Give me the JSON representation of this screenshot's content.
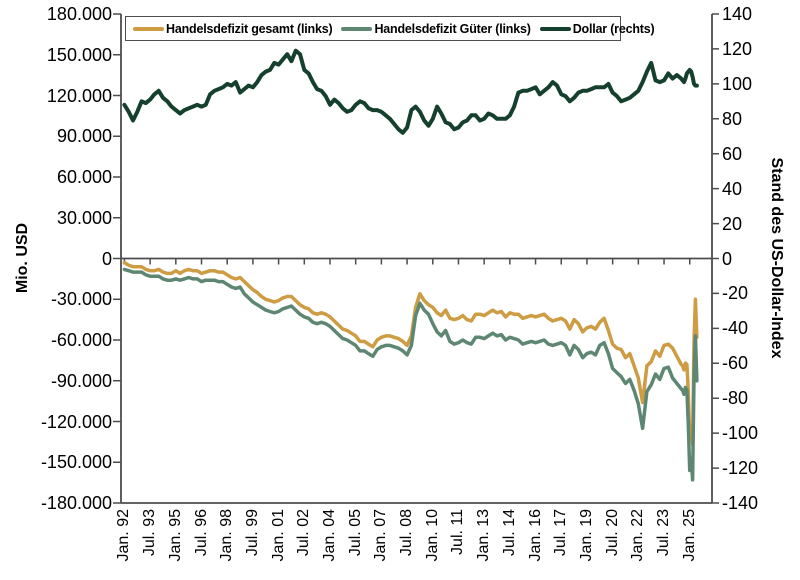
{
  "chart_data": {
    "type": "line",
    "background": "#ffffff",
    "axis_color": "#4d4d4d",
    "legend": {
      "position": "top-inside",
      "entries": [
        "Handelsdefizit gesamt (links)",
        "Handelsdefizit Güter (links)",
        "Dollar (rechts)"
      ]
    },
    "left_axis": {
      "label": "Mio. USD",
      "range": [
        -180000,
        180000
      ],
      "tick_values": [
        180000,
        150000,
        120000,
        90000,
        60000,
        30000,
        0,
        -30000,
        -60000,
        -90000,
        -120000,
        -150000,
        -180000
      ],
      "tick_labels": [
        "180.000",
        "150.000",
        "120.000",
        "90.000",
        "60.000",
        "30.000",
        "0",
        "-30.000",
        "-60.000",
        "-90.000",
        "-120.000",
        "-150.000",
        "-180.000"
      ]
    },
    "right_axis": {
      "label": "Stand des US-Dollar-Index",
      "range": [
        -140,
        140
      ],
      "tick_values": [
        140,
        120,
        100,
        80,
        60,
        40,
        20,
        0,
        -20,
        -40,
        -60,
        -80,
        -100,
        -120,
        -140
      ],
      "tick_labels": [
        "140",
        "120",
        "100",
        "80",
        "60",
        "40",
        "20",
        "0",
        "-20",
        "-40",
        "-60",
        "-80",
        "-100",
        "-120",
        "-140"
      ]
    },
    "x_axis": {
      "range": [
        1991.8,
        2026.3
      ],
      "tick_values": [
        1992,
        1993.5,
        1995,
        1996.5,
        1998,
        1999.5,
        2001,
        2002.5,
        2004,
        2005.5,
        2007,
        2008.5,
        2010,
        2011.5,
        2013,
        2014.5,
        2016,
        2017.5,
        2019,
        2020.5,
        2022,
        2023.5,
        2025
      ],
      "tick_labels": [
        "Jan. 92",
        "Jul. 93",
        "Jan. 95",
        "Jul. 96",
        "Jan. 98",
        "Jul. 99",
        "Jan. 01",
        "Jul. 02",
        "Jan. 04",
        "Jul. 05",
        "Jan. 07",
        "Jul. 08",
        "Jan. 10",
        "Jul. 11",
        "Jan. 13",
        "Jul. 14",
        "Jan. 16",
        "Jul. 17",
        "Jan. 19",
        "Jul. 20",
        "Jan. 22",
        "Jul. 23",
        "Jan. 25"
      ],
      "unit": "month (quarterly samples 1992-2024, monthly Aug 2024 - Jun 2025)"
    },
    "x": [
      1992,
      1992.25,
      1992.5,
      1992.75,
      1993,
      1993.25,
      1993.5,
      1993.75,
      1994,
      1994.25,
      1994.5,
      1994.75,
      1995,
      1995.25,
      1995.5,
      1995.75,
      1996,
      1996.25,
      1996.5,
      1996.75,
      1997,
      1997.25,
      1997.5,
      1997.75,
      1998,
      1998.25,
      1998.5,
      1998.75,
      1999,
      1999.25,
      1999.5,
      1999.75,
      2000,
      2000.25,
      2000.5,
      2000.75,
      2001,
      2001.25,
      2001.5,
      2001.75,
      2002,
      2002.25,
      2002.5,
      2002.75,
      2003,
      2003.25,
      2003.5,
      2003.75,
      2004,
      2004.25,
      2004.5,
      2004.75,
      2005,
      2005.25,
      2005.5,
      2005.75,
      2006,
      2006.25,
      2006.5,
      2006.75,
      2007,
      2007.25,
      2007.5,
      2007.75,
      2008,
      2008.25,
      2008.5,
      2008.75,
      2009,
      2009.25,
      2009.5,
      2009.75,
      2010,
      2010.25,
      2010.5,
      2010.75,
      2011,
      2011.25,
      2011.5,
      2011.75,
      2012,
      2012.25,
      2012.5,
      2012.75,
      2013,
      2013.25,
      2013.5,
      2013.75,
      2014,
      2014.25,
      2014.5,
      2014.75,
      2015,
      2015.25,
      2015.5,
      2015.75,
      2016,
      2016.25,
      2016.5,
      2016.75,
      2017,
      2017.25,
      2017.5,
      2017.75,
      2018,
      2018.25,
      2018.5,
      2018.75,
      2019,
      2019.25,
      2019.5,
      2019.75,
      2020,
      2020.25,
      2020.5,
      2020.75,
      2021,
      2021.25,
      2021.5,
      2021.75,
      2022,
      2022.25,
      2022.5,
      2022.75,
      2023,
      2023.25,
      2023.5,
      2023.75,
      2024,
      2024.25,
      2024.5,
      2024.583,
      2024.667,
      2024.75,
      2024.833,
      2024.917,
      2025,
      2025.083,
      2025.167,
      2025.25,
      2025.333,
      2025.417
    ],
    "series": [
      {
        "name": "Handelsdefizit gesamt (links)",
        "axis": "left",
        "color": "#CD9C43",
        "values": [
          -3000,
          -5000,
          -6000,
          -6000,
          -6000,
          -8000,
          -9000,
          -9000,
          -8000,
          -10000,
          -11000,
          -11000,
          -9000,
          -11000,
          -9000,
          -8000,
          -9000,
          -9000,
          -11000,
          -10000,
          -9000,
          -9000,
          -10000,
          -10000,
          -12000,
          -14000,
          -15000,
          -14000,
          -17000,
          -20000,
          -23000,
          -25000,
          -28000,
          -30000,
          -31000,
          -32000,
          -31000,
          -29000,
          -28000,
          -28000,
          -31000,
          -34000,
          -36000,
          -37000,
          -40000,
          -41000,
          -40000,
          -41000,
          -43000,
          -46000,
          -49000,
          -52000,
          -53000,
          -55000,
          -57000,
          -61000,
          -61000,
          -63000,
          -65000,
          -60000,
          -58000,
          -57000,
          -57000,
          -58000,
          -59000,
          -61000,
          -64000,
          -57000,
          -36000,
          -26000,
          -31000,
          -34000,
          -36000,
          -40000,
          -42000,
          -38000,
          -44000,
          -45000,
          -44000,
          -42000,
          -45000,
          -46000,
          -41000,
          -41000,
          -42000,
          -40000,
          -38000,
          -40000,
          -39000,
          -43000,
          -40000,
          -41000,
          -41000,
          -44000,
          -43000,
          -42000,
          -43000,
          -42000,
          -41000,
          -44000,
          -46000,
          -45000,
          -44000,
          -46000,
          -52000,
          -45000,
          -48000,
          -54000,
          -51000,
          -50000,
          -52000,
          -47000,
          -44000,
          -53000,
          -63000,
          -66000,
          -67000,
          -73000,
          -70000,
          -79000,
          -88000,
          -106000,
          -79000,
          -76000,
          -68000,
          -72000,
          -64000,
          -63000,
          -66000,
          -72000,
          -78000,
          -79000,
          -82000,
          -77000,
          -78000,
          -98000,
          -131000,
          -123000,
          -137000,
          -62000,
          -30000,
          -58000
        ]
      },
      {
        "name": "Handelsdefizit Güter (links)",
        "axis": "left",
        "color": "#5E8773",
        "values": [
          -8000,
          -9000,
          -10000,
          -10000,
          -10000,
          -12000,
          -13000,
          -13000,
          -13000,
          -15000,
          -16000,
          -16000,
          -15000,
          -16000,
          -15000,
          -14000,
          -15000,
          -15000,
          -17000,
          -16000,
          -16000,
          -16000,
          -17000,
          -17000,
          -19000,
          -21000,
          -22000,
          -21000,
          -26000,
          -29000,
          -32000,
          -34000,
          -36000,
          -38000,
          -39000,
          -40000,
          -39000,
          -37000,
          -36000,
          -35000,
          -38000,
          -41000,
          -43000,
          -44000,
          -47000,
          -48000,
          -47000,
          -48000,
          -50000,
          -53000,
          -56000,
          -59000,
          -60000,
          -62000,
          -64000,
          -68000,
          -68000,
          -70000,
          -72000,
          -67000,
          -65000,
          -64000,
          -64000,
          -65000,
          -66000,
          -68000,
          -71000,
          -64000,
          -42000,
          -33000,
          -38000,
          -41000,
          -48000,
          -54000,
          -57000,
          -53000,
          -61000,
          -63000,
          -62000,
          -60000,
          -62000,
          -63000,
          -58000,
          -58000,
          -59000,
          -57000,
          -55000,
          -57000,
          -56000,
          -60000,
          -58000,
          -59000,
          -60000,
          -63000,
          -62000,
          -61000,
          -62000,
          -61000,
          -60000,
          -63000,
          -64000,
          -63000,
          -62000,
          -64000,
          -71000,
          -64000,
          -67000,
          -73000,
          -70000,
          -69000,
          -71000,
          -64000,
          -62000,
          -70000,
          -81000,
          -84000,
          -87000,
          -92000,
          -89000,
          -97000,
          -107000,
          -125000,
          -98000,
          -93000,
          -85000,
          -89000,
          -81000,
          -80000,
          -88000,
          -92000,
          -96000,
          -97000,
          -100000,
          -95000,
          -97000,
          -122000,
          -156000,
          -147000,
          -163000,
          -88000,
          -57000,
          -90000
        ]
      },
      {
        "name": "Dollar (rechts)",
        "axis": "right",
        "color": "#15402E",
        "values": [
          88,
          84,
          79,
          84,
          90,
          89,
          91,
          94,
          96,
          92,
          90,
          87,
          85,
          83,
          85,
          86,
          87,
          88,
          87,
          88,
          94,
          96,
          97,
          98,
          100,
          99,
          101,
          95,
          97,
          99,
          98,
          101,
          105,
          107,
          108,
          112,
          111,
          114,
          117,
          113,
          119,
          117,
          108,
          106,
          101,
          97,
          96,
          93,
          88,
          91,
          89,
          86,
          84,
          85,
          88,
          90,
          89,
          86,
          85,
          85,
          84,
          82,
          80,
          77,
          74,
          72,
          75,
          85,
          87,
          84,
          79,
          76,
          80,
          87,
          83,
          78,
          77,
          74,
          75,
          78,
          79,
          82,
          82,
          79,
          80,
          83,
          82,
          80,
          80,
          80,
          82,
          87,
          95,
          96,
          96,
          97,
          98,
          94,
          96,
          98,
          101,
          99,
          94,
          93,
          90,
          92,
          95,
          96,
          96,
          97,
          98,
          98,
          98,
          100,
          95,
          93,
          90,
          91,
          92,
          94,
          96,
          101,
          107,
          112,
          102,
          101,
          102,
          106,
          103,
          105,
          103,
          102,
          101,
          103,
          106,
          107,
          108,
          107,
          104,
          100,
          99,
          99
        ]
      }
    ]
  }
}
